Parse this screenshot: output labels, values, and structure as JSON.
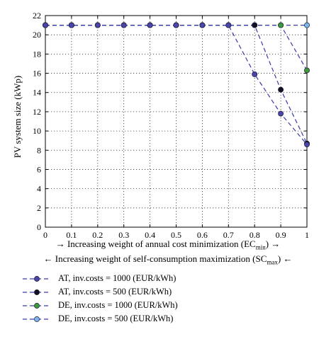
{
  "chart_data": {
    "type": "line",
    "ylabel": "PV system size (kWp)",
    "xlabel_top": {
      "prefix": "→ Increasing weight of annual cost minimization (",
      "base": "EC",
      "sub": "min",
      "suffix": ") →"
    },
    "xlabel_bottom": {
      "prefix": "← Increasing weight of self-consumption maximization (",
      "base": "SC",
      "sub": "max",
      "suffix": ") ←"
    },
    "x_ticks": [
      "0",
      "0.1",
      "0.2",
      "0.3",
      "0.4",
      "0.5",
      "0.6",
      "0.7",
      "0.8",
      "0.9",
      "1"
    ],
    "y_ticks": [
      "0",
      "2",
      "4",
      "6",
      "8",
      "10",
      "12",
      "14",
      "16",
      "18",
      "20",
      "22"
    ],
    "xlim": [
      0,
      1
    ],
    "ylim": [
      0,
      22
    ],
    "grid": true,
    "legend_position": "below",
    "series": [
      {
        "name": "AT, inv.costs = 1000 (EUR/kWh)",
        "color": "#4b45a8",
        "line_color": "#3a3aa8",
        "x": [
          0,
          0.1,
          0.2,
          0.3,
          0.4,
          0.5,
          0.6,
          0.7,
          0.8,
          0.9,
          1
        ],
        "y": [
          21,
          21,
          21,
          21,
          21,
          21,
          21,
          21,
          15.9,
          11.8,
          8.6
        ]
      },
      {
        "name": "AT, inv.costs = 500 (EUR/kWh)",
        "color": "#111122",
        "line_color": "#3a3aa8",
        "x": [
          0,
          0.1,
          0.2,
          0.3,
          0.4,
          0.5,
          0.6,
          0.7,
          0.8,
          0.9,
          1
        ],
        "y": [
          21,
          21,
          21,
          21,
          21,
          21,
          21,
          21,
          21,
          14.3,
          8.7
        ]
      },
      {
        "name": "DE, inv.costs = 1000 (EUR/kWh)",
        "color": "#3f9a3a",
        "line_color": "#3a3aa8",
        "x": [
          0,
          0.1,
          0.2,
          0.3,
          0.4,
          0.5,
          0.6,
          0.7,
          0.8,
          0.9,
          1
        ],
        "y": [
          21,
          21,
          21,
          21,
          21,
          21,
          21,
          21,
          21,
          21,
          16.3
        ]
      },
      {
        "name": "DE, inv.costs = 500 (EUR/kWh)",
        "color": "#7db7ea",
        "line_color": "#3a3aa8",
        "x": [
          0,
          0.1,
          0.2,
          0.3,
          0.4,
          0.5,
          0.6,
          0.7,
          0.8,
          0.9,
          1
        ],
        "y": [
          21,
          21,
          21,
          21,
          21,
          21,
          21,
          21,
          21,
          21,
          21
        ]
      }
    ]
  }
}
